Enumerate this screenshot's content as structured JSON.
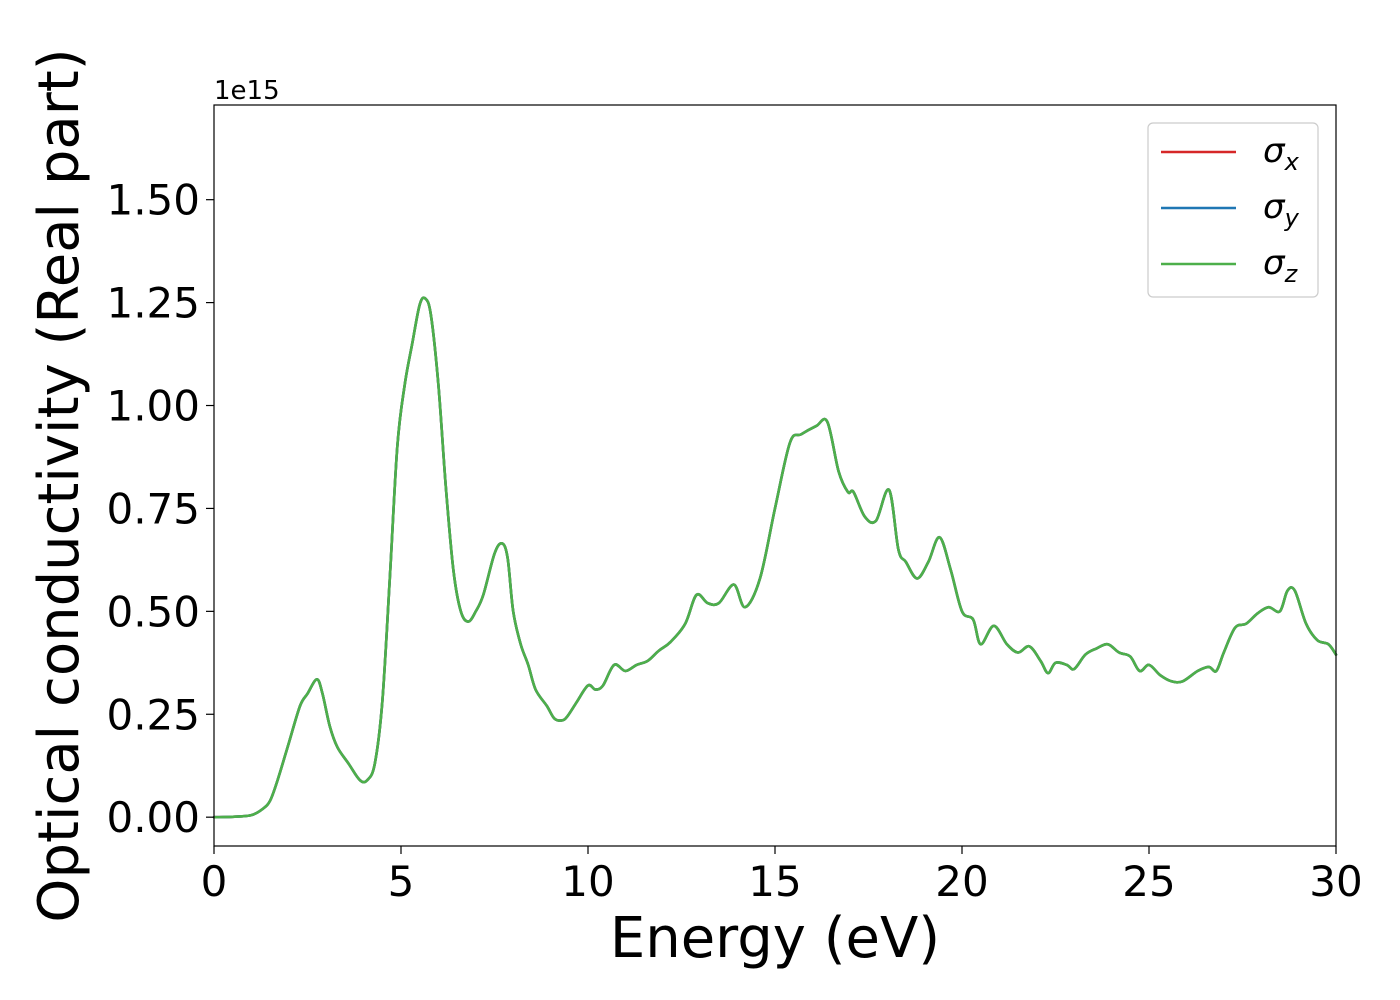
{
  "chart_data": {
    "type": "line",
    "title": "",
    "xlabel": "Energy (eV)",
    "ylabel": "Optical conductivity (Real part)",
    "offset_text": "1e15",
    "xlim": [
      0,
      30
    ],
    "ylim": [
      -0.07,
      1.73
    ],
    "y_scale_factor": "1e15",
    "grid": false,
    "legend_position": "top-right",
    "x_ticks": [
      {
        "value": 0,
        "label": "0"
      },
      {
        "value": 5,
        "label": "5"
      },
      {
        "value": 10,
        "label": "10"
      },
      {
        "value": 15,
        "label": "15"
      },
      {
        "value": 20,
        "label": "20"
      },
      {
        "value": 25,
        "label": "25"
      },
      {
        "value": 30,
        "label": "30"
      }
    ],
    "y_ticks": [
      {
        "value": 0.0,
        "label": "0.00"
      },
      {
        "value": 0.25,
        "label": "0.25"
      },
      {
        "value": 0.5,
        "label": "0.50"
      },
      {
        "value": 0.75,
        "label": "0.75"
      },
      {
        "value": 1.0,
        "label": "1.00"
      },
      {
        "value": 1.25,
        "label": "1.25"
      },
      {
        "value": 1.5,
        "label": "1.50"
      }
    ],
    "x": [
      0,
      0.5,
      1.0,
      1.3,
      1.5,
      1.7,
      2.0,
      2.3,
      2.5,
      2.75,
      2.9,
      3.1,
      3.3,
      3.6,
      3.9,
      4.1,
      4.3,
      4.5,
      4.7,
      4.9,
      5.1,
      5.3,
      5.5,
      5.65,
      5.8,
      6.0,
      6.2,
      6.4,
      6.6,
      6.8,
      7.0,
      7.2,
      7.5,
      7.7,
      7.85,
      8.0,
      8.2,
      8.4,
      8.6,
      8.9,
      9.1,
      9.3,
      9.45,
      9.7,
      10.0,
      10.2,
      10.4,
      10.7,
      11.0,
      11.3,
      11.6,
      11.9,
      12.2,
      12.6,
      12.9,
      13.2,
      13.5,
      13.9,
      14.2,
      14.6,
      15.0,
      15.4,
      15.7,
      16.1,
      16.4,
      16.7,
      16.95,
      17.1,
      17.4,
      17.7,
      18.05,
      18.3,
      18.5,
      18.8,
      19.1,
      19.4,
      19.7,
      20.0,
      20.3,
      20.5,
      20.85,
      21.2,
      21.5,
      21.8,
      22.1,
      22.3,
      22.5,
      22.8,
      23.0,
      23.3,
      23.6,
      23.9,
      24.2,
      24.5,
      24.75,
      25.0,
      25.3,
      25.6,
      25.9,
      26.3,
      26.6,
      26.8,
      27.0,
      27.3,
      27.6,
      27.9,
      28.2,
      28.5,
      28.7,
      28.9,
      29.2,
      29.5,
      29.8,
      30.0
    ],
    "series": [
      {
        "name": "σx",
        "color": "#d62728",
        "values": [
          0,
          0.001,
          0.005,
          0.02,
          0.04,
          0.09,
          0.18,
          0.27,
          0.3,
          0.335,
          0.3,
          0.22,
          0.17,
          0.13,
          0.09,
          0.09,
          0.13,
          0.28,
          0.58,
          0.9,
          1.05,
          1.15,
          1.245,
          1.26,
          1.22,
          1.05,
          0.8,
          0.6,
          0.5,
          0.475,
          0.5,
          0.54,
          0.64,
          0.665,
          0.63,
          0.5,
          0.42,
          0.37,
          0.31,
          0.27,
          0.24,
          0.235,
          0.245,
          0.28,
          0.32,
          0.31,
          0.32,
          0.37,
          0.355,
          0.37,
          0.38,
          0.405,
          0.425,
          0.47,
          0.54,
          0.52,
          0.52,
          0.565,
          0.51,
          0.58,
          0.75,
          0.91,
          0.93,
          0.95,
          0.96,
          0.84,
          0.79,
          0.79,
          0.73,
          0.72,
          0.795,
          0.65,
          0.62,
          0.58,
          0.62,
          0.68,
          0.6,
          0.5,
          0.48,
          0.42,
          0.465,
          0.42,
          0.4,
          0.415,
          0.38,
          0.35,
          0.375,
          0.37,
          0.36,
          0.395,
          0.41,
          0.42,
          0.4,
          0.39,
          0.355,
          0.37,
          0.345,
          0.33,
          0.33,
          0.355,
          0.365,
          0.355,
          0.4,
          0.46,
          0.47,
          0.495,
          0.51,
          0.5,
          0.55,
          0.55,
          0.47,
          0.43,
          0.42,
          0.395
        ]
      },
      {
        "name": "σy",
        "color": "#1f77b4",
        "values": [
          0,
          0.001,
          0.005,
          0.02,
          0.04,
          0.09,
          0.18,
          0.27,
          0.3,
          0.335,
          0.3,
          0.22,
          0.17,
          0.13,
          0.09,
          0.09,
          0.13,
          0.28,
          0.58,
          0.9,
          1.05,
          1.15,
          1.245,
          1.26,
          1.22,
          1.05,
          0.8,
          0.6,
          0.5,
          0.475,
          0.5,
          0.54,
          0.64,
          0.665,
          0.63,
          0.5,
          0.42,
          0.37,
          0.31,
          0.27,
          0.24,
          0.235,
          0.245,
          0.28,
          0.32,
          0.31,
          0.32,
          0.37,
          0.355,
          0.37,
          0.38,
          0.405,
          0.425,
          0.47,
          0.54,
          0.52,
          0.52,
          0.565,
          0.51,
          0.58,
          0.75,
          0.91,
          0.93,
          0.95,
          0.96,
          0.84,
          0.79,
          0.79,
          0.73,
          0.72,
          0.795,
          0.65,
          0.62,
          0.58,
          0.62,
          0.68,
          0.6,
          0.5,
          0.48,
          0.42,
          0.465,
          0.42,
          0.4,
          0.415,
          0.38,
          0.35,
          0.375,
          0.37,
          0.36,
          0.395,
          0.41,
          0.42,
          0.4,
          0.39,
          0.355,
          0.37,
          0.345,
          0.33,
          0.33,
          0.355,
          0.365,
          0.355,
          0.4,
          0.46,
          0.47,
          0.495,
          0.51,
          0.5,
          0.55,
          0.55,
          0.47,
          0.43,
          0.42,
          0.395
        ]
      },
      {
        "name": "σz",
        "color": "#4daf4a",
        "values": [
          0,
          0.001,
          0.005,
          0.02,
          0.04,
          0.09,
          0.18,
          0.27,
          0.3,
          0.335,
          0.3,
          0.22,
          0.17,
          0.13,
          0.09,
          0.09,
          0.13,
          0.28,
          0.58,
          0.9,
          1.05,
          1.15,
          1.245,
          1.26,
          1.22,
          1.05,
          0.8,
          0.6,
          0.5,
          0.475,
          0.5,
          0.54,
          0.64,
          0.665,
          0.63,
          0.5,
          0.42,
          0.37,
          0.31,
          0.27,
          0.24,
          0.235,
          0.245,
          0.28,
          0.32,
          0.31,
          0.32,
          0.37,
          0.355,
          0.37,
          0.38,
          0.405,
          0.425,
          0.47,
          0.54,
          0.52,
          0.52,
          0.565,
          0.51,
          0.58,
          0.75,
          0.91,
          0.93,
          0.95,
          0.96,
          0.84,
          0.79,
          0.79,
          0.73,
          0.72,
          0.795,
          0.65,
          0.62,
          0.58,
          0.62,
          0.68,
          0.6,
          0.5,
          0.48,
          0.42,
          0.465,
          0.42,
          0.4,
          0.415,
          0.38,
          0.35,
          0.375,
          0.37,
          0.36,
          0.395,
          0.41,
          0.42,
          0.4,
          0.39,
          0.355,
          0.37,
          0.345,
          0.33,
          0.33,
          0.355,
          0.365,
          0.355,
          0.4,
          0.46,
          0.47,
          0.495,
          0.51,
          0.5,
          0.55,
          0.55,
          0.47,
          0.43,
          0.42,
          0.395
        ]
      }
    ],
    "legend": [
      {
        "symbol": "σ",
        "sub": "x",
        "color": "#d62728"
      },
      {
        "symbol": "σ",
        "sub": "y",
        "color": "#1f77b4"
      },
      {
        "symbol": "σ",
        "sub": "z",
        "color": "#4daf4a"
      }
    ]
  }
}
